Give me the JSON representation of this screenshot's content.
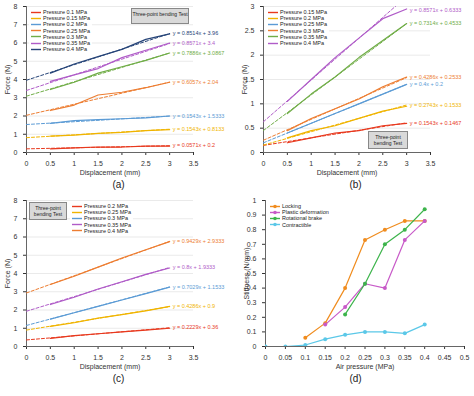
{
  "chart_data": [
    {
      "type": "line",
      "title": "(a)",
      "x_label": "Displacement (mm)",
      "y_label": "Force (N)",
      "annotations": [
        "Three-point bending Test"
      ],
      "x": [
        0.5,
        1,
        1.5,
        2,
        2.5,
        3
      ],
      "fit_x": [
        0,
        3
      ],
      "xlim": [
        0,
        3.5
      ],
      "xticks": [
        0,
        0.5,
        1,
        1.5,
        2,
        2.5,
        3,
        3.5
      ],
      "ylim": [
        0,
        8
      ],
      "yticks": [
        0,
        1,
        2,
        3,
        4,
        5,
        6,
        7,
        8
      ],
      "grid": true,
      "legend": "top-left",
      "series": [
        {
          "name": "Pressure 0.1 MPa",
          "color": "#e8391e",
          "line_style": "solid",
          "values": [
            0.2,
            0.25,
            0.3,
            0.3,
            0.35,
            0.35
          ],
          "fit": {
            "slope": 0.0571,
            "intercept": 0.2,
            "label": "y = 0.0571x + 0.2",
            "line_style": "dashed"
          }
        },
        {
          "name": "Pressure 0.15 MPa",
          "color": "#f0b400",
          "line_style": "solid",
          "values": [
            0.9,
            0.95,
            1.05,
            1.1,
            1.2,
            1.25
          ],
          "fit": {
            "slope": 0.1543,
            "intercept": 0.8133,
            "label": "y = 0.1543x + 0.8133",
            "line_style": "dashed"
          }
        },
        {
          "name": "Pressure 0.2 MPa",
          "color": "#5b9bd5",
          "line_style": "solid",
          "values": [
            1.6,
            1.75,
            1.8,
            1.85,
            1.9,
            2.0
          ],
          "fit": {
            "slope": 0.1543,
            "intercept": 1.5333,
            "label": "y = 0.1543x + 1.5333",
            "line_style": "dashed"
          }
        },
        {
          "name": "Pressure 0.25 MPa",
          "color": "#ed7d31",
          "line_style": "solid",
          "values": [
            2.3,
            2.6,
            3.15,
            3.3,
            3.55,
            3.85
          ],
          "fit": {
            "slope": 0.6057,
            "intercept": 2.04,
            "label": "y = 0.6057x + 2.04",
            "line_style": "dashed"
          }
        },
        {
          "name": "Pressure 0.3 MPa",
          "color": "#70ad47",
          "line_style": "solid",
          "values": [
            3.45,
            3.85,
            4.35,
            4.7,
            5.05,
            5.45
          ],
          "fit": {
            "slope": 0.7886,
            "intercept": 3.0867,
            "label": "y = 0.7886x + 3.0867",
            "line_style": "dashed"
          }
        },
        {
          "name": "Pressure 0.35 MPa",
          "color": "#b05cc8",
          "line_style": "solid",
          "values": [
            3.9,
            4.25,
            4.6,
            5.2,
            5.6,
            6.0
          ],
          "fit": {
            "slope": 0.8571,
            "intercept": 3.4,
            "label": "y = 0.8571x + 3.4",
            "line_style": "dashed"
          }
        },
        {
          "name": "Pressure 0.4 MPa",
          "color": "#264478",
          "line_style": "solid",
          "values": [
            4.35,
            4.85,
            5.25,
            5.65,
            6.2,
            6.5
          ],
          "fit": {
            "slope": 0.8514,
            "intercept": 3.96,
            "label": "y = 0.8514x + 3.96",
            "line_style": "dashed"
          }
        }
      ]
    },
    {
      "type": "line",
      "title": "(b)",
      "x_label": "Displacement (mm)",
      "y_label": "Force (N)",
      "annotations": [
        "Three-point bending Test"
      ],
      "x": [
        0.5,
        1,
        1.5,
        2,
        2.5,
        3
      ],
      "fit_x": [
        0,
        3
      ],
      "xlim": [
        0,
        3.5
      ],
      "xticks": [
        0,
        0.5,
        1,
        1.5,
        2,
        2.5,
        3,
        3.5
      ],
      "ylim": [
        0,
        3
      ],
      "yticks": [
        0,
        0.5,
        1,
        1.5,
        2,
        2.5,
        3
      ],
      "grid": true,
      "legend": "top-left",
      "series": [
        {
          "name": "Pressure 0.15 MPa",
          "color": "#e8391e",
          "line_style": "solid",
          "values": [
            0.2,
            0.3,
            0.4,
            0.45,
            0.55,
            0.6
          ],
          "fit": {
            "slope": 0.1543,
            "intercept": 0.1467,
            "label": "y = 0.1543x + 0.1467",
            "line_style": "dashed"
          }
        },
        {
          "name": "Pressure 0.2 MPa",
          "color": "#f0b400",
          "line_style": "solid",
          "values": [
            0.3,
            0.45,
            0.55,
            0.7,
            0.85,
            0.95
          ],
          "fit": {
            "slope": 0.2743,
            "intercept": 0.1533,
            "label": "y = 0.2743x + 0.1533",
            "line_style": "dashed"
          }
        },
        {
          "name": "Pressure 0.25 MPa",
          "color": "#5b9bd5",
          "line_style": "solid",
          "values": [
            0.4,
            0.6,
            0.8,
            1.0,
            1.2,
            1.4
          ],
          "fit": {
            "slope": 0.4,
            "intercept": 0.2,
            "label": "y = 0.4x + 0.2",
            "line_style": "dashed"
          }
        },
        {
          "name": "Pressure 0.3 MPa",
          "color": "#ed7d31",
          "line_style": "solid",
          "values": [
            0.45,
            0.7,
            0.9,
            1.1,
            1.35,
            1.55
          ],
          "fit": {
            "slope": 0.4286,
            "intercept": 0.2533,
            "label": "y = 0.4286x + 0.2533",
            "line_style": "dashed"
          }
        },
        {
          "name": "Pressure 0.35 MPa",
          "color": "#70ad47",
          "line_style": "solid",
          "values": [
            0.8,
            1.2,
            1.55,
            1.95,
            2.3,
            2.65
          ],
          "fit": {
            "slope": 0.7314,
            "intercept": 0.4533,
            "label": "y = 0.7314x + 0.4533",
            "line_style": "dashed"
          }
        },
        {
          "name": "Pressure 0.4 MPa",
          "color": "#b05cc8",
          "line_style": "solid",
          "values": [
            1.05,
            1.5,
            1.95,
            2.35,
            2.75,
            2.95
          ],
          "fit": {
            "slope": 0.8571,
            "intercept": 0.6333,
            "label": "y = 0.8571x + 0.6333",
            "line_style": "dashed"
          }
        }
      ]
    },
    {
      "type": "line",
      "title": "(c)",
      "x_label": "Displacement (mm)",
      "y_label": "Force (N)",
      "annotations": [
        "Three-point bending Test"
      ],
      "x": [
        0.5,
        1,
        1.5,
        2,
        2.5,
        3
      ],
      "fit_x": [
        0,
        3
      ],
      "xlim": [
        0,
        3.5
      ],
      "xticks": [
        0,
        0.5,
        1,
        1.5,
        2,
        2.5,
        3,
        3.5
      ],
      "ylim": [
        0,
        8
      ],
      "yticks": [
        0,
        1,
        2,
        3,
        4,
        5,
        6,
        7,
        8
      ],
      "grid": true,
      "legend": "top-left",
      "series": [
        {
          "name": "Pressure 0.2 MPa",
          "color": "#e8391e",
          "line_style": "solid",
          "values": [
            0.45,
            0.6,
            0.7,
            0.8,
            0.9,
            1.0
          ],
          "fit": {
            "slope": 0.2229,
            "intercept": 0.36,
            "label": "y = 0.2229x + 0.36",
            "line_style": "dashed"
          }
        },
        {
          "name": "Pressure 0.25 MPa",
          "color": "#f0b400",
          "line_style": "solid",
          "values": [
            1.1,
            1.3,
            1.55,
            1.75,
            1.95,
            2.2
          ],
          "fit": {
            "slope": 0.4286,
            "intercept": 0.9,
            "label": "y = 0.4286x + 0.9",
            "line_style": "dashed"
          }
        },
        {
          "name": "Pressure 0.3 MPa",
          "color": "#5b9bd5",
          "line_style": "solid",
          "values": [
            1.5,
            1.85,
            2.2,
            2.55,
            2.9,
            3.25
          ],
          "fit": {
            "slope": 0.7029,
            "intercept": 1.1533,
            "label": "y = 0.7029x + 1.1533",
            "line_style": "dashed"
          }
        },
        {
          "name": "Pressure 0.35 MPa",
          "color": "#b05cc8",
          "line_style": "solid",
          "values": [
            2.3,
            2.7,
            3.15,
            3.55,
            3.95,
            4.3
          ],
          "fit": {
            "slope": 0.8,
            "intercept": 1.9333,
            "label": "y = 0.8x + 1.9333",
            "line_style": "dashed"
          }
        },
        {
          "name": "Pressure 0.4 MPa",
          "color": "#ed7d31",
          "line_style": "solid",
          "values": [
            3.4,
            3.85,
            4.35,
            4.85,
            5.3,
            5.75
          ],
          "fit": {
            "slope": 0.9429,
            "intercept": 2.9333,
            "label": "y = 0.9429x + 2.9333",
            "line_style": "dashed"
          }
        }
      ]
    },
    {
      "type": "line",
      "title": "(d)",
      "x_label": "Air pressure (MPa)",
      "y_label": "Stiffness (N/mm)",
      "xlim": [
        0,
        0.5
      ],
      "xticks": [
        0,
        0.05,
        0.1,
        0.15,
        0.2,
        0.25,
        0.3,
        0.35,
        0.4,
        0.45,
        0.5
      ],
      "ylim": [
        0,
        1
      ],
      "yticks": [
        0,
        0.1,
        0.2,
        0.3,
        0.4,
        0.5,
        0.6,
        0.7,
        0.8,
        0.9,
        1
      ],
      "grid": false,
      "legend": "top-left",
      "series": [
        {
          "name": "Locking",
          "color": "#f08c1e",
          "marker": "circle",
          "line_style": "solid",
          "x": [
            0.1,
            0.15,
            0.2,
            0.25,
            0.3,
            0.35,
            0.4
          ],
          "values": [
            0.06,
            0.16,
            0.4,
            0.73,
            0.8,
            0.86,
            0.86
          ]
        },
        {
          "name": "Plastic deformation",
          "color": "#c85ac8",
          "marker": "circle",
          "line_style": "solid",
          "x": [
            0.15,
            0.2,
            0.25,
            0.3,
            0.35,
            0.4
          ],
          "values": [
            0.15,
            0.27,
            0.43,
            0.4,
            0.73,
            0.86
          ]
        },
        {
          "name": "Rotational brake",
          "color": "#3cb44b",
          "marker": "circle",
          "line_style": "solid",
          "x": [
            0.2,
            0.25,
            0.3,
            0.35,
            0.4
          ],
          "values": [
            0.22,
            0.43,
            0.7,
            0.8,
            0.94
          ]
        },
        {
          "name": "Contractible",
          "color": "#5bc8e8",
          "marker": "circle",
          "line_style": "solid",
          "x": [
            0,
            0.05,
            0.1,
            0.15,
            0.2,
            0.25,
            0.3,
            0.35,
            0.4
          ],
          "values": [
            0,
            0,
            0.01,
            0.05,
            0.08,
            0.1,
            0.1,
            0.09,
            0.15
          ]
        }
      ]
    }
  ]
}
